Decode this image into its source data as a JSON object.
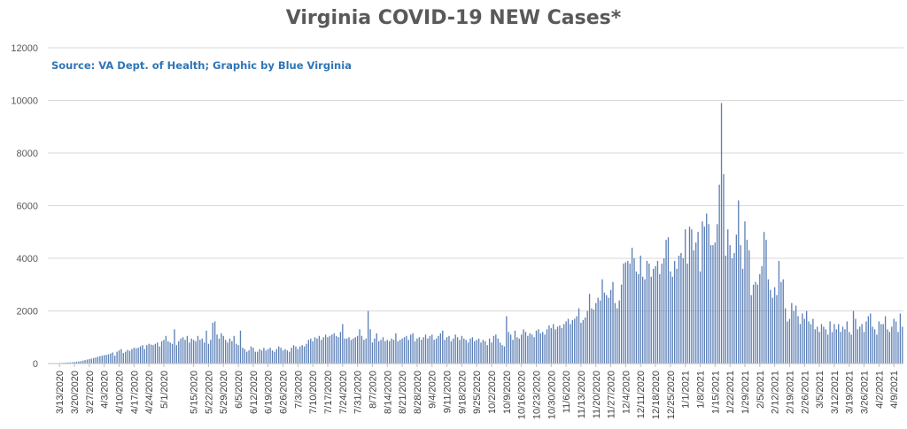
{
  "chart_data": {
    "type": "bar",
    "title": "Virginia COVID-19 NEW Cases*",
    "annotation": "Source: VA Dept. of Health; Graphic by Blue Virginia",
    "xlabel": "",
    "ylabel": "",
    "ylim": [
      0,
      12000
    ],
    "yticks": [
      0,
      2000,
      4000,
      6000,
      8000,
      10000,
      12000
    ],
    "grid": true,
    "legend": "none",
    "bar_color": "#5b7fb6",
    "x_start": "3/8/2020",
    "x_end": "4/13/2021",
    "tick_labels": [
      "3/13/2020",
      "3/20/2020",
      "3/27/2020",
      "4/3/2020",
      "4/10/2020",
      "4/17/2020",
      "4/24/2020",
      "5/1/2020",
      "5/15/2020",
      "5/22/2020",
      "5/29/2020",
      "6/5/2020",
      "6/12/2020",
      "6/19/2020",
      "6/26/2020",
      "7/3/2020",
      "7/10/2020",
      "7/17/2020",
      "7/24/2020",
      "7/31/2020",
      "8/7/2020",
      "8/14/2020",
      "8/21/2020",
      "8/28/2020",
      "9/4/2020",
      "9/11/2020",
      "9/18/2020",
      "9/25/2020",
      "10/2/2020",
      "10/9/2020",
      "10/16/2020",
      "10/23/2020",
      "10/30/2020",
      "11/6/2020",
      "11/13/2020",
      "11/20/2020",
      "11/27/2020",
      "12/4/2020",
      "12/11/2020",
      "12/18/2020",
      "12/25/2020",
      "1/1/2021",
      "1/8/2021",
      "1/15/2021",
      "1/22/2021",
      "1/29/2021",
      "2/5/2021",
      "2/12/2021",
      "2/19/2021",
      "2/26/2021",
      "3/5/2021",
      "3/12/2021",
      "3/19/2021",
      "3/26/2021",
      "4/2/2021",
      "4/9/2021"
    ],
    "weekly_values": [
      [
        "3/8/2020",
        [
          0,
          5,
          8,
          10,
          15,
          20,
          25
        ]
      ],
      [
        "3/15/2020",
        [
          30,
          35,
          40,
          45,
          50,
          60,
          70
        ]
      ],
      [
        "3/22/2020",
        [
          80,
          90,
          110,
          130,
          150,
          170,
          190
        ]
      ],
      [
        "3/29/2020",
        [
          210,
          230,
          260,
          280,
          300,
          320,
          330
        ]
      ],
      [
        "4/5/2020",
        [
          350,
          380,
          420,
          300,
          450,
          500,
          550
        ]
      ],
      [
        "4/12/2020",
        [
          400,
          450,
          520,
          480,
          550,
          600,
          580
        ]
      ],
      [
        "4/19/2020",
        [
          600,
          650,
          700,
          550,
          700,
          750,
          720
        ]
      ],
      [
        "4/26/2020",
        [
          700,
          750,
          800,
          650,
          850,
          900,
          1050
        ]
      ],
      [
        "5/3/2020",
        [
          850,
          800,
          750,
          1300,
          700,
          850,
          950
        ]
      ],
      [
        "5/10/2020",
        [
          1000,
          900,
          1050,
          800,
          950,
          900,
          850
        ]
      ],
      [
        "5/17/2020",
        [
          1050,
          900,
          950,
          800,
          1250,
          750,
          900
        ]
      ],
      [
        "5/24/2020",
        [
          1550,
          1600,
          1100,
          950,
          1150,
          1050,
          900
        ]
      ],
      [
        "5/31/2020",
        [
          800,
          950,
          850,
          1050,
          750,
          700,
          1250
        ]
      ],
      [
        "6/7/2020",
        [
          600,
          550,
          450,
          500,
          650,
          600,
          450
        ]
      ],
      [
        "6/14/2020",
        [
          450,
          550,
          500,
          600,
          500,
          550,
          600
        ]
      ],
      [
        "6/21/2020",
        [
          500,
          450,
          550,
          650,
          600,
          500,
          550
        ]
      ],
      [
        "6/28/2020",
        [
          500,
          450,
          600,
          700,
          650,
          550,
          650
        ]
      ],
      [
        "7/5/2020",
        [
          700,
          650,
          750,
          900,
          950,
          850,
          1000
        ]
      ],
      [
        "7/12/2020",
        [
          950,
          1050,
          900,
          1000,
          1100,
          1000,
          1050
        ]
      ],
      [
        "7/19/2020",
        [
          1100,
          1150,
          1050,
          1000,
          1200,
          1500,
          950
        ]
      ],
      [
        "7/26/2020",
        [
          950,
          1000,
          900,
          950,
          1000,
          1050,
          1300
        ]
      ],
      [
        "8/2/2020",
        [
          1050,
          900,
          950,
          2000,
          1300,
          800,
          950
        ]
      ],
      [
        "8/9/2020",
        [
          1150,
          850,
          900,
          1000,
          850,
          900,
          850
        ]
      ],
      [
        "8/16/2020",
        [
          950,
          900,
          1150,
          850,
          900,
          950,
          1000
        ]
      ],
      [
        "8/23/2020",
        [
          1050,
          900,
          1100,
          1150,
          850,
          950,
          1000
        ]
      ],
      [
        "8/30/2020",
        [
          900,
          1000,
          1100,
          950,
          1050,
          1100,
          900
        ]
      ],
      [
        "9/6/2020",
        [
          950,
          1050,
          1150,
          1250,
          900,
          1000,
          1050
        ]
      ],
      [
        "9/13/2020",
        [
          850,
          950,
          1100,
          1000,
          900,
          1050,
          950
        ]
      ],
      [
        "9/20/2020",
        [
          900,
          800,
          950,
          1000,
          850,
          900,
          950
        ]
      ],
      [
        "9/27/2020",
        [
          800,
          900,
          850,
          700,
          950,
          800,
          1050
        ]
      ],
      [
        "10/4/2020",
        [
          1100,
          950,
          800,
          700,
          650,
          1800,
          1200
        ]
      ],
      [
        "10/11/2020",
        [
          1100,
          900,
          1250,
          1000,
          950,
          1100,
          1300
        ]
      ],
      [
        "10/18/2020",
        [
          1200,
          1050,
          1150,
          1100,
          1000,
          1250,
          1300
        ]
      ],
      [
        "10/25/2020",
        [
          1150,
          1200,
          1100,
          1300,
          1450,
          1350,
          1500
        ]
      ],
      [
        "11/1/2020",
        [
          1300,
          1400,
          1450,
          1350,
          1500,
          1600,
          1700
        ]
      ],
      [
        "11/8/2020",
        [
          1500,
          1650,
          1700,
          1800,
          2100,
          1550,
          1650
        ]
      ],
      [
        "11/15/2020",
        [
          1750,
          2000,
          2650,
          2100,
          2050,
          2300,
          2500
        ]
      ],
      [
        "11/22/2020",
        [
          2400,
          3200,
          2700,
          2600,
          2500,
          2800,
          3100
        ]
      ],
      [
        "11/29/2020",
        [
          2300,
          2100,
          2400,
          3000,
          3800,
          3850,
          3900
        ]
      ],
      [
        "12/6/2020",
        [
          3800,
          4400,
          4000,
          3500,
          3400,
          4100,
          3300
        ]
      ],
      [
        "12/13/2020",
        [
          3200,
          3900,
          3800,
          3300,
          3600,
          3700,
          3900
        ]
      ],
      [
        "12/20/2020",
        [
          3400,
          3800,
          4000,
          4700,
          4800,
          3500,
          3300
        ]
      ],
      [
        "12/27/2020",
        [
          3900,
          3600,
          4100,
          4200,
          4000,
          5100,
          3800
        ]
      ],
      [
        "1/3/2021",
        [
          5200,
          5100,
          4300,
          4600,
          5000,
          3500,
          5400
        ]
      ],
      [
        "1/10/2021",
        [
          5200,
          5700,
          5300,
          4500,
          4500,
          4600,
          5300
        ]
      ],
      [
        "1/17/2021",
        [
          6800,
          9900,
          7200,
          4100,
          5100,
          4500,
          4000
        ]
      ],
      [
        "1/24/2021",
        [
          4200,
          4900,
          6200,
          4500,
          3600,
          5400,
          4700
        ]
      ],
      [
        "1/31/2021",
        [
          4300,
          2600,
          3000,
          3100,
          3000,
          3400,
          3700
        ]
      ],
      [
        "2/7/2021",
        [
          5000,
          4700,
          3200,
          2800,
          2500,
          2900,
          2600
        ]
      ],
      [
        "2/14/2021",
        [
          3900,
          3100,
          3200,
          2100,
          1600,
          1700,
          2300
        ]
      ],
      [
        "2/21/2021",
        [
          2000,
          2200,
          1800,
          1500,
          1900,
          1700,
          2000
        ]
      ],
      [
        "2/28/2021",
        [
          1600,
          1500,
          1700,
          1300,
          1400,
          1200,
          1500
        ]
      ],
      [
        "3/7/2021",
        [
          1400,
          1300,
          1100,
          1600,
          1200,
          1500,
          1300
        ]
      ],
      [
        "3/14/2021",
        [
          1500,
          1200,
          1400,
          1300,
          1600,
          1200,
          1100
        ]
      ],
      [
        "3/21/2021",
        [
          2000,
          1700,
          1300,
          1400,
          1500,
          1200,
          1600
        ]
      ],
      [
        "3/28/2021",
        [
          1800,
          1900,
          1400,
          1300,
          1100,
          1600,
          1500
        ]
      ],
      [
        "4/4/2021",
        [
          1500,
          1800,
          1300,
          1200,
          1400,
          1700,
          1600
        ]
      ],
      [
        "4/11/2021",
        [
          1200,
          1900,
          1400
        ]
      ]
    ]
  }
}
